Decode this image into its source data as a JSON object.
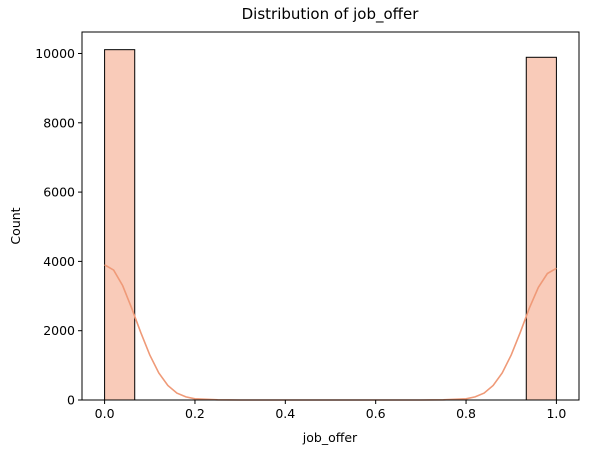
{
  "chart_data": {
    "type": "bar",
    "title": "Distribution of job_offer",
    "xlabel": "job_offer",
    "ylabel": "Count",
    "xlim": [
      -0.05,
      1.05
    ],
    "ylim": [
      0,
      10620
    ],
    "xticks": [
      0.0,
      0.2,
      0.4,
      0.6,
      0.8,
      1.0
    ],
    "xtick_labels": [
      "0.0",
      "0.2",
      "0.4",
      "0.6",
      "0.8",
      "1.0"
    ],
    "yticks": [
      0,
      2000,
      4000,
      6000,
      8000,
      10000
    ],
    "ytick_labels": [
      "0",
      "2000",
      "4000",
      "6000",
      "8000",
      "10000"
    ],
    "bin_width": 0.0667,
    "bins": [
      {
        "x0": 0.0,
        "x1": 0.0667,
        "count": 10110
      },
      {
        "x0": 0.9333,
        "x1": 1.0,
        "count": 9890
      }
    ],
    "kde": {
      "x": [
        0.0,
        0.02,
        0.04,
        0.06,
        0.08,
        0.1,
        0.12,
        0.14,
        0.16,
        0.18,
        0.2,
        0.25,
        0.3,
        0.4,
        0.5,
        0.6,
        0.7,
        0.75,
        0.8,
        0.82,
        0.84,
        0.86,
        0.88,
        0.9,
        0.92,
        0.94,
        0.96,
        0.98,
        1.0
      ],
      "y": [
        3900,
        3750,
        3300,
        2650,
        1950,
        1300,
        780,
        420,
        200,
        90,
        35,
        5,
        0,
        0,
        0,
        0,
        0,
        5,
        35,
        90,
        200,
        420,
        780,
        1300,
        1950,
        2650,
        3250,
        3650,
        3800
      ]
    },
    "grid": false,
    "colors": {
      "bar_fill": "#f9cbb9",
      "bar_edge": "#000000",
      "kde_line": "#ef9a78"
    }
  }
}
